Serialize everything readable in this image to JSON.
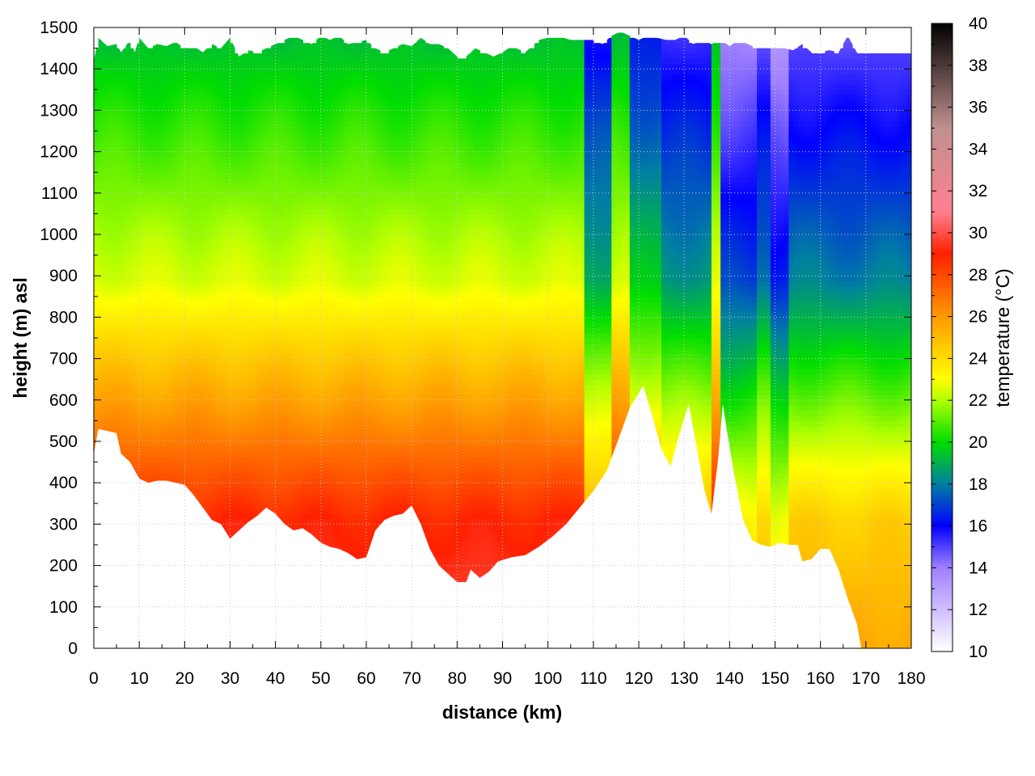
{
  "chart_data": {
    "type": "heatmap",
    "title": "",
    "xlabel": "distance (km)",
    "ylabel": "height (m) asl",
    "colorbar_label": "temperature (°C)",
    "xlim": [
      0,
      180
    ],
    "ylim": [
      0,
      1500
    ],
    "clim": [
      10,
      40
    ],
    "x_ticks": [
      0,
      10,
      20,
      30,
      40,
      50,
      60,
      70,
      80,
      90,
      100,
      110,
      120,
      130,
      140,
      150,
      160,
      170,
      180
    ],
    "y_ticks": [
      0,
      100,
      200,
      300,
      400,
      500,
      600,
      700,
      800,
      900,
      1000,
      1100,
      1200,
      1300,
      1400,
      1500
    ],
    "c_ticks": [
      10,
      12,
      14,
      16,
      18,
      20,
      22,
      24,
      26,
      28,
      30,
      32,
      34,
      36,
      38,
      40
    ],
    "grid": true,
    "colormap": [
      {
        "t": 10,
        "color": "#ffffff"
      },
      {
        "t": 14,
        "color": "#a080ff"
      },
      {
        "t": 16,
        "color": "#0000ff"
      },
      {
        "t": 18,
        "color": "#0080a0"
      },
      {
        "t": 20,
        "color": "#00dd00"
      },
      {
        "t": 22,
        "color": "#b0ff00"
      },
      {
        "t": 23,
        "color": "#ffff00"
      },
      {
        "t": 26,
        "color": "#ff9900"
      },
      {
        "t": 29,
        "color": "#ff2000"
      },
      {
        "t": 31,
        "color": "#ff8090"
      },
      {
        "t": 35,
        "color": "#c09090"
      },
      {
        "t": 40,
        "color": "#000000"
      }
    ],
    "terrain": [
      [
        0,
        470
      ],
      [
        1,
        530
      ],
      [
        3,
        525
      ],
      [
        5,
        520
      ],
      [
        6,
        470
      ],
      [
        8,
        450
      ],
      [
        10,
        410
      ],
      [
        12,
        400
      ],
      [
        14,
        405
      ],
      [
        16,
        405
      ],
      [
        18,
        400
      ],
      [
        20,
        395
      ],
      [
        22,
        370
      ],
      [
        24,
        340
      ],
      [
        26,
        310
      ],
      [
        28,
        300
      ],
      [
        30,
        265
      ],
      [
        32,
        285
      ],
      [
        34,
        305
      ],
      [
        36,
        320
      ],
      [
        38,
        340
      ],
      [
        40,
        325
      ],
      [
        42,
        300
      ],
      [
        44,
        285
      ],
      [
        46,
        290
      ],
      [
        48,
        275
      ],
      [
        50,
        255
      ],
      [
        52,
        245
      ],
      [
        54,
        240
      ],
      [
        56,
        230
      ],
      [
        58,
        215
      ],
      [
        60,
        220
      ],
      [
        62,
        285
      ],
      [
        64,
        310
      ],
      [
        66,
        320
      ],
      [
        68,
        325
      ],
      [
        70,
        345
      ],
      [
        72,
        300
      ],
      [
        74,
        240
      ],
      [
        76,
        200
      ],
      [
        78,
        180
      ],
      [
        80,
        160
      ],
      [
        82,
        160
      ],
      [
        83,
        190
      ],
      [
        85,
        170
      ],
      [
        87,
        185
      ],
      [
        89,
        210
      ],
      [
        92,
        220
      ],
      [
        95,
        225
      ],
      [
        98,
        245
      ],
      [
        101,
        270
      ],
      [
        104,
        300
      ],
      [
        107,
        340
      ],
      [
        110,
        380
      ],
      [
        113,
        430
      ],
      [
        116,
        520
      ],
      [
        118,
        580
      ],
      [
        121,
        635
      ],
      [
        123,
        560
      ],
      [
        125,
        480
      ],
      [
        127,
        440
      ],
      [
        129,
        520
      ],
      [
        131,
        590
      ],
      [
        133,
        470
      ],
      [
        134.5,
        380
      ],
      [
        136,
        325
      ],
      [
        137.5,
        460
      ],
      [
        138.5,
        590
      ],
      [
        139.5,
        520
      ],
      [
        141,
        420
      ],
      [
        143,
        310
      ],
      [
        145,
        260
      ],
      [
        147,
        250
      ],
      [
        149,
        245
      ],
      [
        151,
        255
      ],
      [
        153,
        250
      ],
      [
        155,
        250
      ],
      [
        156,
        210
      ],
      [
        158,
        215
      ],
      [
        160,
        240
      ],
      [
        162,
        240
      ],
      [
        164,
        190
      ],
      [
        166,
        120
      ],
      [
        168,
        60
      ],
      [
        169,
        0
      ]
    ],
    "canopy_top": [
      [
        0,
        1420
      ],
      [
        1,
        1475
      ],
      [
        3,
        1455
      ],
      [
        5,
        1460
      ],
      [
        6,
        1440
      ],
      [
        8,
        1470
      ],
      [
        9,
        1440
      ],
      [
        10,
        1475
      ],
      [
        12,
        1450
      ],
      [
        14,
        1460
      ],
      [
        16,
        1455
      ],
      [
        18,
        1465
      ],
      [
        20,
        1450
      ],
      [
        22,
        1455
      ],
      [
        24,
        1440
      ],
      [
        26,
        1460
      ],
      [
        28,
        1450
      ],
      [
        30,
        1475
      ],
      [
        32,
        1430
      ],
      [
        34,
        1445
      ],
      [
        36,
        1440
      ],
      [
        38,
        1450
      ],
      [
        40,
        1460
      ],
      [
        42,
        1470
      ],
      [
        44,
        1480
      ],
      [
        46,
        1470
      ],
      [
        48,
        1460
      ],
      [
        50,
        1480
      ],
      [
        52,
        1470
      ],
      [
        54,
        1480
      ],
      [
        56,
        1460
      ],
      [
        58,
        1465
      ],
      [
        60,
        1470
      ],
      [
        62,
        1450
      ],
      [
        64,
        1440
      ],
      [
        66,
        1450
      ],
      [
        68,
        1460
      ],
      [
        70,
        1455
      ],
      [
        72,
        1475
      ],
      [
        74,
        1460
      ],
      [
        76,
        1460
      ],
      [
        78,
        1450
      ],
      [
        80,
        1430
      ],
      [
        82,
        1430
      ],
      [
        84,
        1450
      ],
      [
        86,
        1440
      ],
      [
        88,
        1430
      ],
      [
        90,
        1440
      ],
      [
        92,
        1455
      ],
      [
        95,
        1440
      ],
      [
        98,
        1470
      ],
      [
        102,
        1480
      ],
      [
        105,
        1470
      ],
      [
        108,
        1470
      ],
      [
        110,
        1470
      ],
      [
        112,
        1460
      ],
      [
        114,
        1480
      ],
      [
        116,
        1490
      ],
      [
        118,
        1480
      ],
      [
        120,
        1470
      ],
      [
        122,
        1480
      ],
      [
        124,
        1475
      ],
      [
        126,
        1470
      ],
      [
        128,
        1470
      ],
      [
        130,
        1480
      ],
      [
        132,
        1460
      ],
      [
        134,
        1470
      ],
      [
        136,
        1460
      ],
      [
        138,
        1470
      ],
      [
        140,
        1455
      ],
      [
        142,
        1470
      ],
      [
        144,
        1460
      ],
      [
        146,
        1450
      ],
      [
        148,
        1455
      ],
      [
        150,
        1450
      ],
      [
        152,
        1450
      ],
      [
        154,
        1445
      ],
      [
        156,
        1460
      ],
      [
        158,
        1440
      ],
      [
        160,
        1440
      ],
      [
        162,
        1445
      ],
      [
        164,
        1440
      ],
      [
        166,
        1480
      ],
      [
        168,
        1440
      ],
      [
        170,
        1440
      ],
      [
        180,
        1440
      ]
    ],
    "anomaly_bands": [
      {
        "x0": 108,
        "x1": 114,
        "delta": -3.5
      },
      {
        "x0": 118,
        "x1": 125,
        "delta": -3.0
      },
      {
        "x0": 125,
        "x1": 136,
        "delta": -4.0
      },
      {
        "x0": 138,
        "x1": 146,
        "delta": -5.5
      },
      {
        "x0": 146,
        "x1": 149,
        "delta": -4.5
      },
      {
        "x0": 149,
        "x1": 153,
        "delta": -6.0
      },
      {
        "x0": 153,
        "x1": 180,
        "delta": -4.5
      }
    ]
  }
}
